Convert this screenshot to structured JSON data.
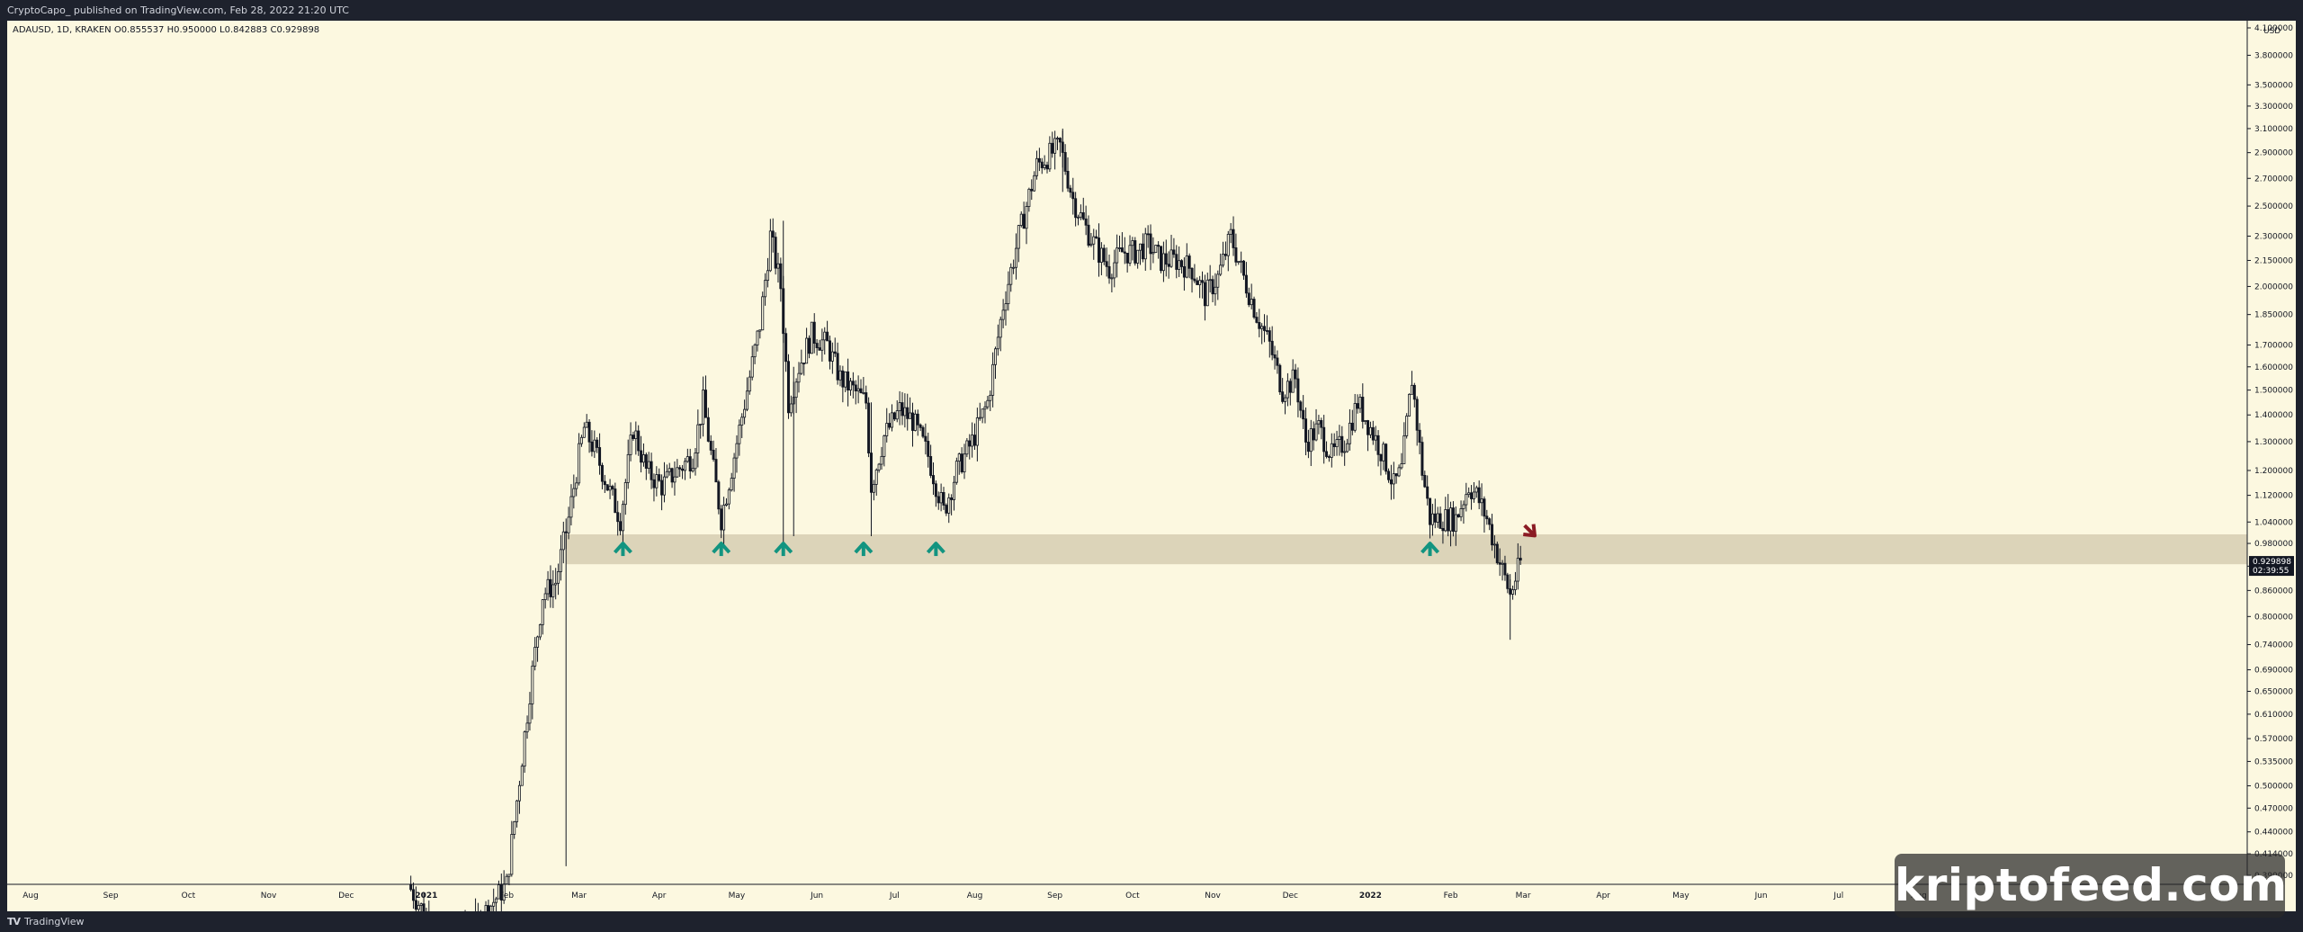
{
  "header": {
    "publish_text": "CryptoCapo_ published on TradingView.com, Feb 28, 2022 21:20 UTC"
  },
  "symbol": {
    "line": "ADAUSD, 1D, KRAKEN  O0.855537  H0.950000  L0.842883  C0.929898"
  },
  "footer": {
    "brand": "TradingView",
    "brand_mark": "TV"
  },
  "watermark": {
    "text": "kriptofeed.com"
  },
  "colors": {
    "background": "#fcf8e0",
    "candle": "#131722",
    "zone": "#d6ceb2",
    "arrow_up": "#129480",
    "arrow_down": "#8b1c24",
    "price_badge": "#131722"
  },
  "chart_data": {
    "type": "candlestick",
    "symbol": "ADAUSD",
    "timeframe": "1D",
    "exchange": "KRAKEN",
    "ohlc_last": {
      "open": 0.855537,
      "high": 0.95,
      "low": 0.842883,
      "close": 0.929898
    },
    "current_price_label": "0.929898",
    "countdown_label": "02:39:55",
    "y_unit": "USD",
    "y_scale": "log",
    "y_ticks": [
      "4.100000",
      "3.800000",
      "3.500000",
      "3.300000",
      "3.100000",
      "2.900000",
      "2.700000",
      "2.500000",
      "2.300000",
      "2.150000",
      "2.000000",
      "1.850000",
      "1.700000",
      "1.600000",
      "1.500000",
      "1.400000",
      "1.300000",
      "1.200000",
      "1.120000",
      "1.040000",
      "0.980000",
      "0.920000",
      "0.860000",
      "0.800000",
      "0.740000",
      "0.690000",
      "0.650000",
      "0.610000",
      "0.570000",
      "0.535000",
      "0.500000",
      "0.470000",
      "0.440000",
      "0.414000",
      "0.390000"
    ],
    "x_ticks": [
      "Aug",
      "Sep",
      "Oct",
      "Nov",
      "Dec",
      "2021",
      "Feb",
      "Mar",
      "Apr",
      "May",
      "Jun",
      "Jul",
      "Aug",
      "Sep",
      "Oct",
      "Nov",
      "Dec",
      "2022",
      "Feb",
      "Mar",
      "Apr",
      "May",
      "Jun",
      "Jul",
      "Aug"
    ],
    "support_zone": {
      "low": 0.925,
      "high": 1.005
    },
    "price_path": [
      [
        "2020-12-25",
        0.38
      ],
      [
        "2021-01-05",
        0.33
      ],
      [
        "2021-01-20",
        0.34
      ],
      [
        "2021-02-01",
        0.38
      ],
      [
        "2021-02-05",
        0.48
      ],
      [
        "2021-02-10",
        0.65
      ],
      [
        "2021-02-15",
        0.85
      ],
      [
        "2021-02-20",
        0.88
      ],
      [
        "2021-02-25",
        1.05
      ],
      [
        "2021-03-01",
        1.25
      ],
      [
        "2021-03-03",
        1.35
      ],
      [
        "2021-03-08",
        1.25
      ],
      [
        "2021-03-12",
        1.15
      ],
      [
        "2021-03-17",
        1.05
      ],
      [
        "2021-03-22",
        1.35
      ],
      [
        "2021-03-27",
        1.2
      ],
      [
        "2021-04-02",
        1.15
      ],
      [
        "2021-04-08",
        1.2
      ],
      [
        "2021-04-14",
        1.25
      ],
      [
        "2021-04-18",
        1.45
      ],
      [
        "2021-04-22",
        1.2
      ],
      [
        "2021-04-25",
        1.05
      ],
      [
        "2021-04-30",
        1.25
      ],
      [
        "2021-05-05",
        1.5
      ],
      [
        "2021-05-10",
        1.8
      ],
      [
        "2021-05-14",
        2.3
      ],
      [
        "2021-05-18",
        2.0
      ],
      [
        "2021-05-21",
        1.45
      ],
      [
        "2021-05-25",
        1.6
      ],
      [
        "2021-05-30",
        1.75
      ],
      [
        "2021-06-05",
        1.7
      ],
      [
        "2021-06-10",
        1.55
      ],
      [
        "2021-06-15",
        1.5
      ],
      [
        "2021-06-20",
        1.45
      ],
      [
        "2021-06-22",
        1.15
      ],
      [
        "2021-06-27",
        1.32
      ],
      [
        "2021-07-03",
        1.42
      ],
      [
        "2021-07-08",
        1.38
      ],
      [
        "2021-07-14",
        1.25
      ],
      [
        "2021-07-20",
        1.07
      ],
      [
        "2021-07-25",
        1.2
      ],
      [
        "2021-07-31",
        1.3
      ],
      [
        "2021-08-06",
        1.45
      ],
      [
        "2021-08-12",
        1.9
      ],
      [
        "2021-08-18",
        2.3
      ],
      [
        "2021-08-25",
        2.8
      ],
      [
        "2021-08-31",
        2.9
      ],
      [
        "2021-09-03",
        2.95
      ],
      [
        "2021-09-08",
        2.55
      ],
      [
        "2021-09-13",
        2.35
      ],
      [
        "2021-09-18",
        2.2
      ],
      [
        "2021-09-22",
        2.1
      ],
      [
        "2021-09-27",
        2.2
      ],
      [
        "2021-10-02",
        2.2
      ],
      [
        "2021-10-07",
        2.25
      ],
      [
        "2021-10-12",
        2.15
      ],
      [
        "2021-10-18",
        2.15
      ],
      [
        "2021-10-24",
        2.1
      ],
      [
        "2021-10-29",
        1.95
      ],
      [
        "2021-11-03",
        2.05
      ],
      [
        "2021-11-08",
        2.3
      ],
      [
        "2021-11-13",
        2.05
      ],
      [
        "2021-11-18",
        1.85
      ],
      [
        "2021-11-23",
        1.7
      ],
      [
        "2021-11-28",
        1.5
      ],
      [
        "2021-12-03",
        1.55
      ],
      [
        "2021-12-07",
        1.3
      ],
      [
        "2021-12-12",
        1.35
      ],
      [
        "2021-12-17",
        1.25
      ],
      [
        "2021-12-22",
        1.3
      ],
      [
        "2021-12-27",
        1.45
      ],
      [
        "2022-01-01",
        1.35
      ],
      [
        "2022-01-06",
        1.25
      ],
      [
        "2022-01-10",
        1.15
      ],
      [
        "2022-01-13",
        1.2
      ],
      [
        "2022-01-17",
        1.55
      ],
      [
        "2022-01-21",
        1.2
      ],
      [
        "2022-01-24",
        1.05
      ],
      [
        "2022-01-29",
        1.05
      ],
      [
        "2022-02-03",
        1.05
      ],
      [
        "2022-02-08",
        1.15
      ],
      [
        "2022-02-11",
        1.12
      ],
      [
        "2022-02-15",
        1.05
      ],
      [
        "2022-02-20",
        0.93
      ],
      [
        "2022-02-24",
        0.85
      ],
      [
        "2022-02-28",
        0.93
      ]
    ],
    "bounce_markers": [
      {
        "date": "2021-03-18",
        "value": 0.98,
        "direction": "up"
      },
      {
        "date": "2021-04-25",
        "value": 0.98,
        "direction": "up"
      },
      {
        "date": "2021-05-19",
        "value": 0.98,
        "direction": "up"
      },
      {
        "date": "2021-06-19",
        "value": 0.98,
        "direction": "up"
      },
      {
        "date": "2021-07-17",
        "value": 0.98,
        "direction": "up"
      },
      {
        "date": "2022-01-24",
        "value": 0.98,
        "direction": "up"
      },
      {
        "date": "2022-03-05",
        "value": 1.0,
        "direction": "down"
      }
    ],
    "grid": false
  }
}
